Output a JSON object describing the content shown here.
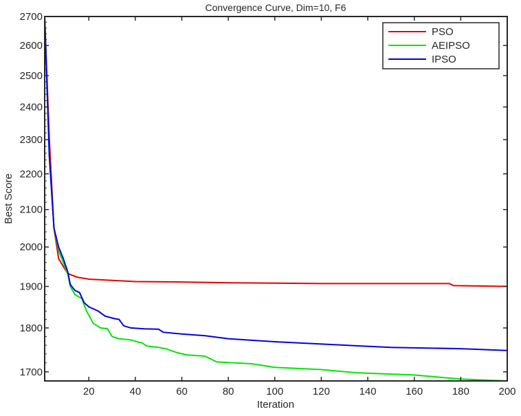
{
  "chart_data": {
    "type": "line",
    "title": "Convergence Curve, Dim=10, F6",
    "xlabel": "Iteration",
    "ylabel": "Best Score",
    "xlim": [
      1,
      200
    ],
    "ylim": [
      1680,
      2700
    ],
    "yscale": "log",
    "grid": false,
    "legend_placement": "top-right",
    "xticks": [
      20,
      40,
      60,
      80,
      100,
      120,
      140,
      160,
      180,
      200
    ],
    "yticks": [
      1700,
      1800,
      1900,
      2000,
      2100,
      2200,
      2300,
      2400,
      2500,
      2600,
      2700
    ],
    "series": [
      {
        "name": "PSO",
        "color": "#e60000",
        "x": [
          1,
          3,
          5,
          7,
          9,
          11,
          15,
          20,
          30,
          40,
          60,
          80,
          100,
          120,
          175,
          177,
          200
        ],
        "y": [
          2700,
          2300,
          2050,
          1970,
          1950,
          1932,
          1923,
          1918,
          1915,
          1912,
          1911,
          1909,
          1908,
          1907,
          1907,
          1902,
          1900
        ]
      },
      {
        "name": "AEIPSO",
        "color": "#00e600",
        "x": [
          1,
          3,
          5,
          7,
          9,
          11,
          12,
          14,
          17,
          19,
          22,
          25,
          28,
          30,
          33,
          38,
          43,
          45,
          50,
          53,
          58,
          62,
          70,
          75,
          90,
          100,
          120,
          135,
          160,
          180,
          200
        ],
        "y": [
          2700,
          2250,
          2050,
          1990,
          1960,
          1930,
          1900,
          1880,
          1870,
          1840,
          1810,
          1800,
          1798,
          1780,
          1775,
          1772,
          1765,
          1758,
          1755,
          1752,
          1743,
          1738,
          1735,
          1722,
          1718,
          1710,
          1705,
          1698,
          1693,
          1684,
          1680
        ]
      },
      {
        "name": "IPSO",
        "color": "#0000e6",
        "x": [
          1,
          3,
          5,
          7,
          9,
          11,
          12,
          14,
          16,
          18,
          20,
          24,
          27,
          31,
          33,
          35,
          38,
          44,
          50,
          52,
          60,
          70,
          80,
          100,
          130,
          150,
          180,
          200
        ],
        "y": [
          2700,
          2250,
          2050,
          2000,
          1970,
          1935,
          1905,
          1890,
          1885,
          1860,
          1850,
          1840,
          1828,
          1822,
          1820,
          1805,
          1800,
          1798,
          1797,
          1790,
          1786,
          1782,
          1775,
          1768,
          1760,
          1755,
          1752,
          1748
        ]
      }
    ]
  }
}
